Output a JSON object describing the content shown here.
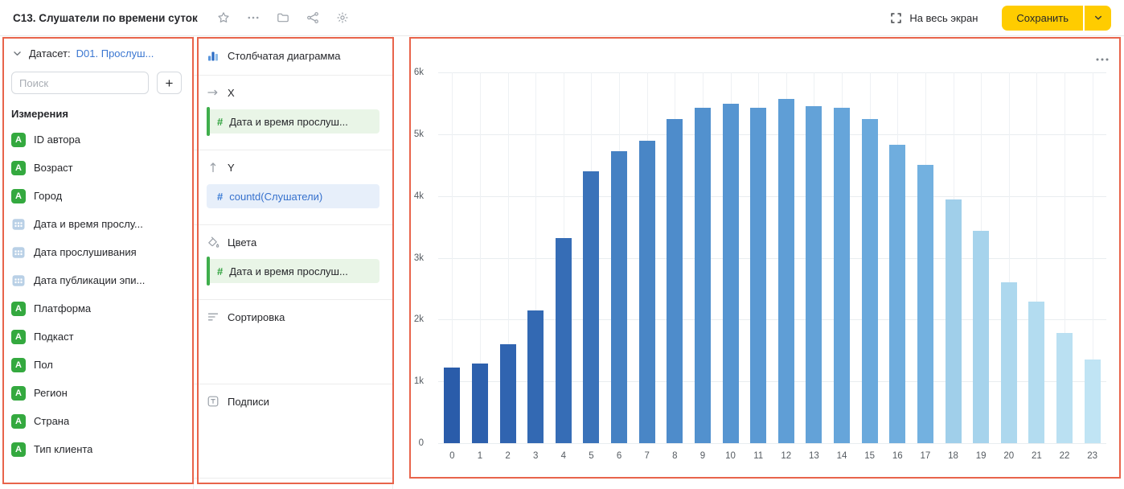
{
  "header": {
    "title": "C13. Слушатели по времени суток",
    "toolbar_icons": [
      "star-icon",
      "more-icon",
      "folder-icon",
      "share-icon",
      "gear-icon"
    ],
    "fullscreen_label": "На весь экран",
    "save_label": "Сохранить"
  },
  "dataset_panel": {
    "dataset_label": "Датасет:",
    "dataset_name": "D01. Прослуш...",
    "search_placeholder": "Поиск",
    "add_button_label": "+",
    "dimensions_header": "Измерения",
    "fields": [
      {
        "label": "ID автора",
        "type": "string"
      },
      {
        "label": "Возраст",
        "type": "string"
      },
      {
        "label": "Город",
        "type": "string"
      },
      {
        "label": "Дата и время прослу...",
        "type": "date"
      },
      {
        "label": "Дата прослушивания",
        "type": "date"
      },
      {
        "label": "Дата публикации эпи...",
        "type": "date"
      },
      {
        "label": "Платформа",
        "type": "string"
      },
      {
        "label": "Подкаст",
        "type": "string"
      },
      {
        "label": "Пол",
        "type": "string"
      },
      {
        "label": "Регион",
        "type": "string"
      },
      {
        "label": "Страна",
        "type": "string"
      },
      {
        "label": "Тип клиента",
        "type": "string"
      }
    ]
  },
  "config_panel": {
    "chart_type_label": "Столбчатая диаграмма",
    "sections": [
      {
        "id": "x",
        "label": "X",
        "icon": "x-axis-icon",
        "chips": [
          {
            "label": "Дата и время прослуш...",
            "kind": "dimension"
          }
        ]
      },
      {
        "id": "y",
        "label": "Y",
        "icon": "y-axis-icon",
        "chips": [
          {
            "label": "countd(Слушатели)",
            "kind": "measure"
          }
        ]
      },
      {
        "id": "colors",
        "label": "Цвета",
        "icon": "paint-icon",
        "chips": [
          {
            "label": "Дата и время прослуш...",
            "kind": "dimension"
          }
        ]
      },
      {
        "id": "sort",
        "label": "Сортировка",
        "icon": "sort-icon",
        "chips": []
      },
      {
        "id": "labels",
        "label": "Подписи",
        "icon": "labels-icon",
        "chips": []
      }
    ]
  },
  "chart_data": {
    "type": "bar",
    "title": "",
    "xlabel": "",
    "ylabel": "",
    "categories": [
      "0",
      "1",
      "2",
      "3",
      "4",
      "5",
      "6",
      "7",
      "8",
      "9",
      "10",
      "11",
      "12",
      "13",
      "14",
      "15",
      "16",
      "17",
      "18",
      "19",
      "20",
      "21",
      "22",
      "23"
    ],
    "values": [
      1230,
      1290,
      1600,
      2150,
      3320,
      4400,
      4730,
      4890,
      5250,
      5430,
      5490,
      5430,
      5570,
      5450,
      5430,
      5250,
      4830,
      4500,
      3950,
      3430,
      2600,
      2290,
      1780,
      1350
    ],
    "ylim": [
      0,
      6000
    ],
    "ytick_labels": [
      "0",
      "1k",
      "2k",
      "3k",
      "4k",
      "5k",
      "6k"
    ],
    "grid": true,
    "legend": false,
    "bar_colors": [
      "#2a5caa",
      "#2d60ad",
      "#3064b0",
      "#3369b3",
      "#366db6",
      "#3a72b9",
      "#4581c3",
      "#4986c6",
      "#4e8ccb",
      "#5291ce",
      "#5695d1",
      "#5a99d3",
      "#5f9ed6",
      "#63a2d8",
      "#66a5da",
      "#6aa9dc",
      "#6fadde",
      "#73b1e0",
      "#a0cfea",
      "#a6d3ec",
      "#add8ee",
      "#b3dcf0",
      "#bae0f2",
      "#c0e4f4"
    ]
  },
  "colors": {
    "accent_yellow": "#ffcc00",
    "dimension_green": "#3fae4c",
    "measure_blue": "#3a7bd5",
    "link_blue": "#3b77d1",
    "annotation_red": "#e8644b"
  }
}
